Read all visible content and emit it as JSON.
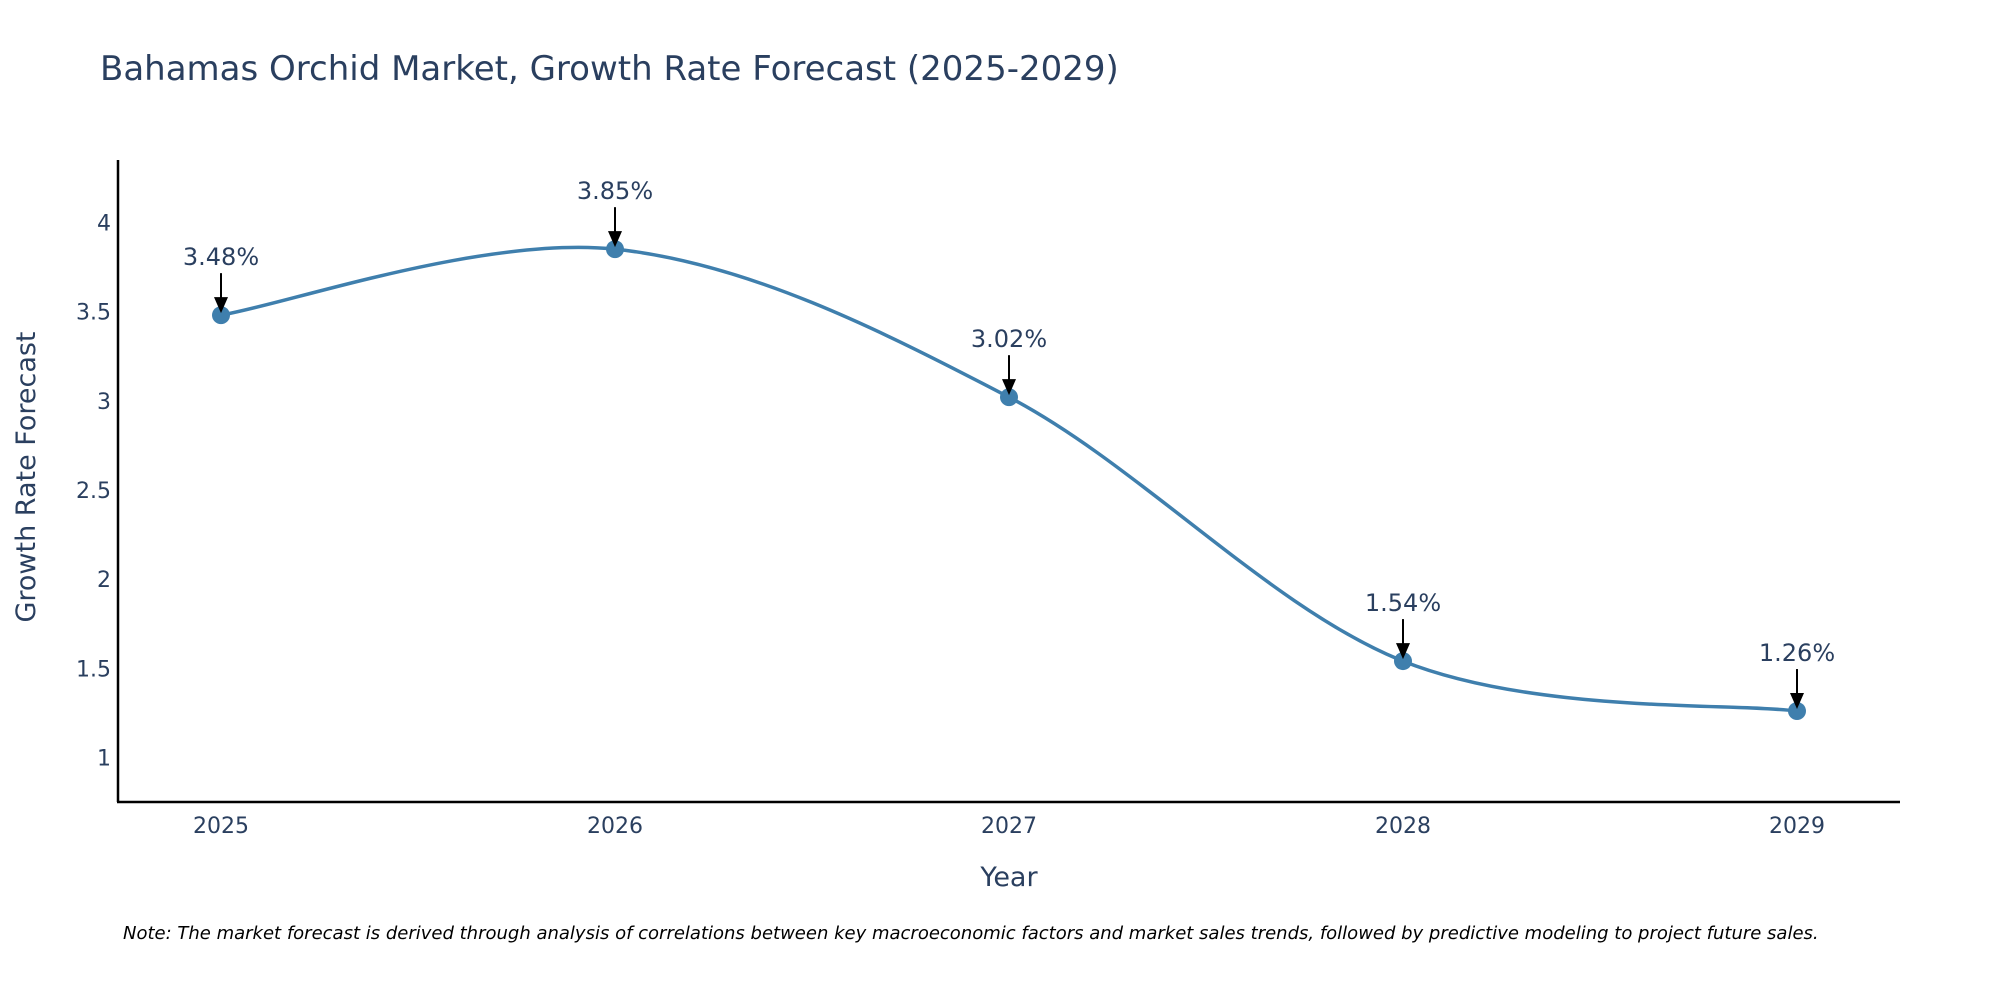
{
  "chart_data": {
    "type": "line",
    "title": "Bahamas Orchid Market, Growth Rate Forecast (2025-2029)",
    "xlabel": "Year",
    "ylabel": "Growth Rate Forecast",
    "categories": [
      "2025",
      "2026",
      "2027",
      "2028",
      "2029"
    ],
    "values": [
      3.48,
      3.85,
      3.02,
      1.54,
      1.26
    ],
    "data_labels": [
      "3.48%",
      "3.85%",
      "3.02%",
      "1.54%",
      "1.26%"
    ],
    "y_ticks": [
      1,
      1.5,
      2,
      2.5,
      3,
      3.5,
      4
    ],
    "y_tick_labels": [
      "1",
      "1.5",
      "2",
      "2.5",
      "3",
      "3.5",
      "4"
    ],
    "ylim": [
      0.75,
      4.35
    ],
    "line_shape": "spline",
    "grid": false,
    "legend": "none",
    "colors": {
      "line": "#3f7fad",
      "marker": "#3f7fad",
      "text": "#2a3f5f",
      "axis": "#000000",
      "arrow": "#000000"
    },
    "note": "Note: The market forecast is derived through analysis of correlations between key macroeconomic factors and market sales trends, followed by predictive modeling to project future sales."
  }
}
